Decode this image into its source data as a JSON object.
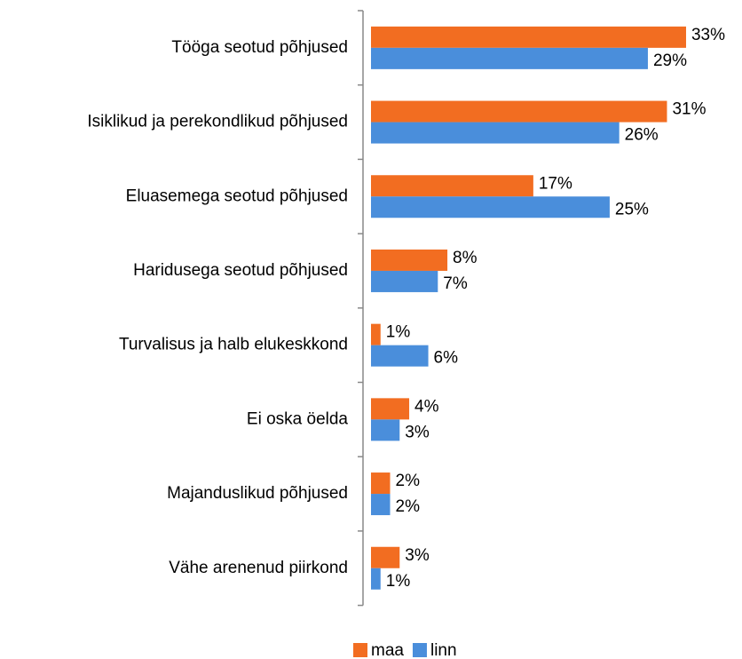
{
  "chart_data": {
    "type": "bar",
    "orientation": "horizontal",
    "categories": [
      "Tööga seotud põhjused",
      "Isiklikud ja perekondlikud põhjused",
      "Eluasemega seotud põhjused",
      "Haridusega seotud põhjused",
      "Turvalisus ja halb elukeskkond",
      "Ei oska öelda",
      "Majanduslikud põhjused",
      "Vähe arenenud piirkond"
    ],
    "series": [
      {
        "name": "maa",
        "color": "#f26d21",
        "values": [
          33,
          31,
          17,
          8,
          1,
          4,
          2,
          3
        ],
        "value_labels": [
          "33%",
          "31%",
          "17%",
          "8%",
          "1%",
          "4%",
          "2%",
          "3%"
        ]
      },
      {
        "name": "linn",
        "color": "#4a8edb",
        "values": [
          29,
          26,
          25,
          7,
          6,
          3,
          2,
          1
        ],
        "value_labels": [
          "29%",
          "26%",
          "25%",
          "7%",
          "6%",
          "3%",
          "2%",
          "1%"
        ]
      }
    ],
    "xlim": [
      0,
      35
    ],
    "legend": "bottom"
  }
}
